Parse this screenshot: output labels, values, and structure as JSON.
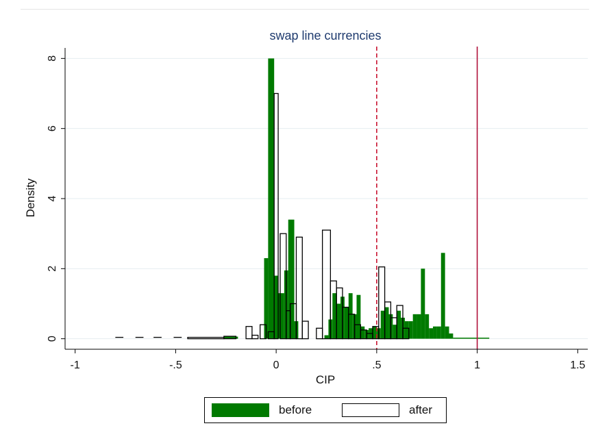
{
  "chart_data": {
    "type": "bar",
    "title": "swap line currencies",
    "xlabel": "CIP",
    "ylabel": "Density",
    "xlim": [
      -1.05,
      1.55
    ],
    "ylim": [
      -0.3,
      8.3
    ],
    "x_ticks": [
      {
        "value": -1,
        "label": "-1"
      },
      {
        "value": -0.5,
        "label": "-.5"
      },
      {
        "value": 0,
        "label": "0"
      },
      {
        "value": 0.5,
        "label": ".5"
      },
      {
        "value": 1,
        "label": "1"
      },
      {
        "value": 1.5,
        "label": "1.5"
      }
    ],
    "y_ticks": [
      {
        "value": 0,
        "label": "0"
      },
      {
        "value": 2,
        "label": "2"
      },
      {
        "value": 4,
        "label": "4"
      },
      {
        "value": 6,
        "label": "6"
      },
      {
        "value": 8,
        "label": "8"
      }
    ],
    "grid": true,
    "legend_position": "bottom",
    "colors": {
      "before": "#007a00",
      "after": "#ffffff",
      "vline_dashed": "#c8102e",
      "vline_solid": "#b0103a",
      "grid": "#e6edf0"
    },
    "series": [
      {
        "name": "before",
        "bins": [
          {
            "x0": -0.26,
            "x1": -0.19,
            "y": 0.06
          },
          {
            "x0": -0.06,
            "x1": -0.04,
            "y": 2.3
          },
          {
            "x0": -0.04,
            "x1": -0.01,
            "y": 8.0
          },
          {
            "x0": -0.01,
            "x1": 0.01,
            "y": 1.8
          },
          {
            "x0": 0.01,
            "x1": 0.04,
            "y": 1.3
          },
          {
            "x0": 0.04,
            "x1": 0.06,
            "y": 1.95
          },
          {
            "x0": 0.06,
            "x1": 0.09,
            "y": 3.4
          },
          {
            "x0": 0.09,
            "x1": 0.11,
            "y": 0.5
          },
          {
            "x0": 0.24,
            "x1": 0.26,
            "y": 0.1
          },
          {
            "x0": 0.26,
            "x1": 0.28,
            "y": 0.55
          },
          {
            "x0": 0.28,
            "x1": 0.3,
            "y": 1.3
          },
          {
            "x0": 0.3,
            "x1": 0.32,
            "y": 1.0
          },
          {
            "x0": 0.32,
            "x1": 0.34,
            "y": 1.2
          },
          {
            "x0": 0.34,
            "x1": 0.36,
            "y": 0.9
          },
          {
            "x0": 0.36,
            "x1": 0.38,
            "y": 1.3
          },
          {
            "x0": 0.38,
            "x1": 0.4,
            "y": 0.7
          },
          {
            "x0": 0.4,
            "x1": 0.42,
            "y": 1.25
          },
          {
            "x0": 0.42,
            "x1": 0.44,
            "y": 0.35
          },
          {
            "x0": 0.44,
            "x1": 0.46,
            "y": 0.25
          },
          {
            "x0": 0.46,
            "x1": 0.48,
            "y": 0.3
          },
          {
            "x0": 0.48,
            "x1": 0.5,
            "y": 0.35
          },
          {
            "x0": 0.5,
            "x1": 0.52,
            "y": 0.3
          },
          {
            "x0": 0.52,
            "x1": 0.54,
            "y": 0.8
          },
          {
            "x0": 0.54,
            "x1": 0.56,
            "y": 0.9
          },
          {
            "x0": 0.56,
            "x1": 0.58,
            "y": 0.7
          },
          {
            "x0": 0.58,
            "x1": 0.6,
            "y": 0.4
          },
          {
            "x0": 0.6,
            "x1": 0.62,
            "y": 0.8
          },
          {
            "x0": 0.62,
            "x1": 0.64,
            "y": 0.6
          },
          {
            "x0": 0.64,
            "x1": 0.66,
            "y": 0.5
          },
          {
            "x0": 0.66,
            "x1": 0.68,
            "y": 0.5
          },
          {
            "x0": 0.68,
            "x1": 0.7,
            "y": 0.7
          },
          {
            "x0": 0.7,
            "x1": 0.72,
            "y": 0.7
          },
          {
            "x0": 0.72,
            "x1": 0.74,
            "y": 2.0
          },
          {
            "x0": 0.74,
            "x1": 0.76,
            "y": 0.7
          },
          {
            "x0": 0.76,
            "x1": 0.78,
            "y": 0.3
          },
          {
            "x0": 0.78,
            "x1": 0.8,
            "y": 0.35
          },
          {
            "x0": 0.8,
            "x1": 0.82,
            "y": 0.35
          },
          {
            "x0": 0.82,
            "x1": 0.84,
            "y": 2.45
          },
          {
            "x0": 0.84,
            "x1": 0.86,
            "y": 0.35
          },
          {
            "x0": 0.86,
            "x1": 0.88,
            "y": 0.15
          },
          {
            "x0": 0.88,
            "x1": 1.06,
            "y": 0.03
          }
        ]
      },
      {
        "name": "after",
        "bins": [
          {
            "x0": -0.44,
            "x1": -0.26,
            "y": 0.04
          },
          {
            "x0": -0.26,
            "x1": -0.2,
            "y": 0.07
          },
          {
            "x0": -0.15,
            "x1": -0.12,
            "y": 0.35
          },
          {
            "x0": -0.12,
            "x1": -0.09,
            "y": 0.1
          },
          {
            "x0": -0.08,
            "x1": -0.05,
            "y": 0.4
          },
          {
            "x0": -0.04,
            "x1": -0.01,
            "y": 0.2
          },
          {
            "x0": -0.01,
            "x1": 0.01,
            "y": 7.0
          },
          {
            "x0": 0.02,
            "x1": 0.05,
            "y": 3.0
          },
          {
            "x0": 0.05,
            "x1": 0.07,
            "y": 0.8
          },
          {
            "x0": 0.07,
            "x1": 0.1,
            "y": 1.0
          },
          {
            "x0": 0.1,
            "x1": 0.13,
            "y": 2.9
          },
          {
            "x0": 0.13,
            "x1": 0.16,
            "y": 0.5
          },
          {
            "x0": 0.2,
            "x1": 0.23,
            "y": 0.3
          },
          {
            "x0": 0.23,
            "x1": 0.27,
            "y": 3.1
          },
          {
            "x0": 0.27,
            "x1": 0.3,
            "y": 1.65
          },
          {
            "x0": 0.3,
            "x1": 0.33,
            "y": 1.45
          },
          {
            "x0": 0.33,
            "x1": 0.36,
            "y": 0.9
          },
          {
            "x0": 0.36,
            "x1": 0.39,
            "y": 0.7
          },
          {
            "x0": 0.39,
            "x1": 0.42,
            "y": 0.4
          },
          {
            "x0": 0.42,
            "x1": 0.45,
            "y": 0.25
          },
          {
            "x0": 0.45,
            "x1": 0.48,
            "y": 0.15
          },
          {
            "x0": 0.48,
            "x1": 0.51,
            "y": 0.35
          },
          {
            "x0": 0.51,
            "x1": 0.54,
            "y": 2.05
          },
          {
            "x0": 0.54,
            "x1": 0.57,
            "y": 1.05
          },
          {
            "x0": 0.57,
            "x1": 0.6,
            "y": 0.6
          },
          {
            "x0": 0.6,
            "x1": 0.63,
            "y": 0.95
          },
          {
            "x0": 0.63,
            "x1": 0.66,
            "y": 0.3
          }
        ]
      }
    ],
    "reference_lines": [
      {
        "x": 0.5,
        "style": "dashed"
      },
      {
        "x": 1.0,
        "style": "solid"
      }
    ]
  },
  "legend": {
    "items": [
      {
        "label": "before",
        "color": "#007a00"
      },
      {
        "label": "after",
        "color": "#ffffff"
      }
    ]
  }
}
